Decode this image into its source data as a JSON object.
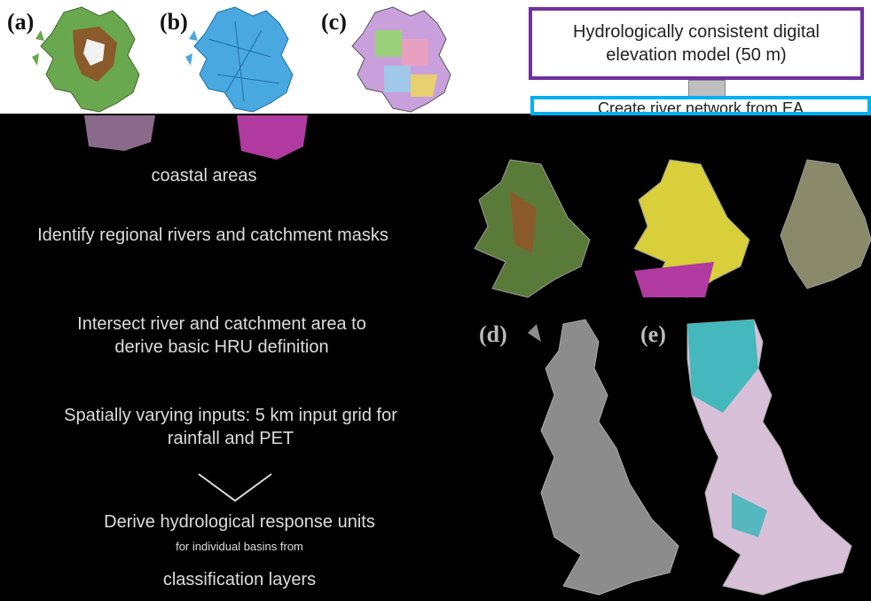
{
  "panels": {
    "a": "(a)",
    "b": "(b)",
    "c": "(c)",
    "d": "(d)",
    "e": "(e)"
  },
  "flow": {
    "box1": "Hydrologically consistent digital elevation model (50 m)",
    "box2": "Create river network from EA",
    "step_coastal": "coastal areas",
    "step_identify": "Identify regional rivers and catchment masks",
    "step_intersect": "Intersect river and catchment area to derive basic HRU definition",
    "step_inputs": "Spatially varying inputs: 5 km input grid for rainfall and PET",
    "step_derive": "Derive hydrological response units",
    "step_derive_sub": "for individual basins from",
    "step_layers": "classification layers"
  },
  "colors": {
    "purple": "#7030a0",
    "cyan": "#00b0f0",
    "terrain_green": "#6aa84f",
    "terrain_brown": "#8b5a2b",
    "river_blue": "#4aa8e0",
    "yellow": "#d8cf3a",
    "magenta": "#b03aa0",
    "teal": "#1fb5b5"
  }
}
